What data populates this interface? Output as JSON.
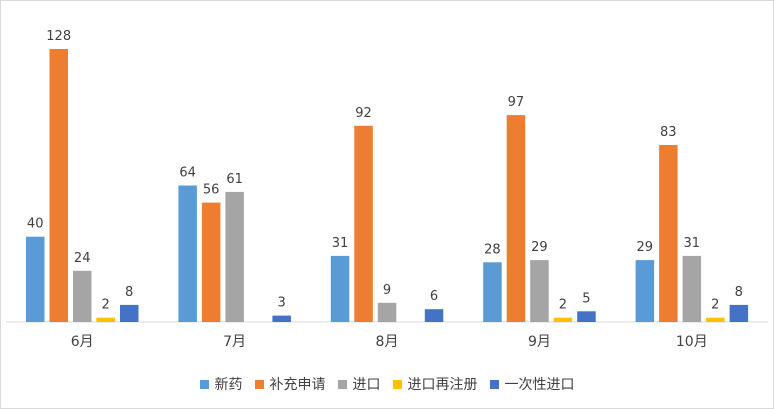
{
  "chart_data": {
    "type": "bar",
    "categories": [
      "6月",
      "7月",
      "8月",
      "9月",
      "10月"
    ],
    "series": [
      {
        "name": "新药",
        "values": [
          40,
          64,
          31,
          28,
          29
        ],
        "color": "#5b9bd5"
      },
      {
        "name": "补充申请",
        "values": [
          128,
          56,
          92,
          97,
          83
        ],
        "color": "#ed7d31"
      },
      {
        "name": "进口",
        "values": [
          24,
          61,
          9,
          29,
          31
        ],
        "color": "#a5a5a5"
      },
      {
        "name": "进口再注册",
        "values": [
          2,
          null,
          null,
          2,
          2
        ],
        "color": "#ffc000"
      },
      {
        "name": "一次性进口",
        "values": [
          8,
          3,
          6,
          5,
          8
        ],
        "color": "#4472c4"
      }
    ],
    "data_labels": [
      [
        "40",
        "64",
        "31",
        "28",
        "29"
      ],
      [
        "128",
        "56",
        "92",
        "97",
        "83"
      ],
      [
        "24",
        "61",
        "9",
        "29",
        "31"
      ],
      [
        "2",
        "",
        "",
        "2",
        "2"
      ],
      [
        "8",
        "3",
        "6",
        "5",
        "8"
      ]
    ],
    "ylim": [
      0,
      130
    ],
    "grid": false,
    "legend_position": "bottom"
  }
}
